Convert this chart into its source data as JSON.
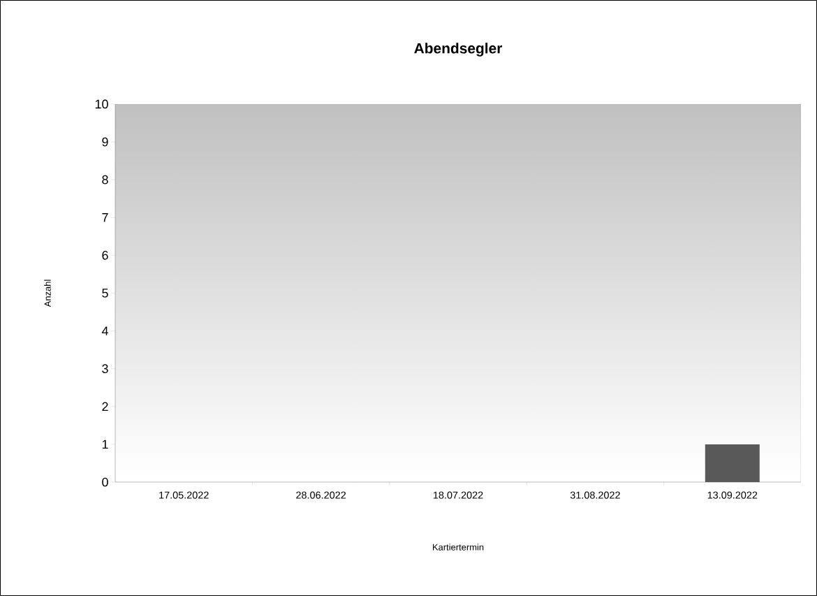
{
  "chart_data": {
    "type": "bar",
    "title": "Abendsegler",
    "xlabel": "Kartiertermin",
    "ylabel": "Anzahl",
    "categories": [
      "17.05.2022",
      "28.06.2022",
      "18.07.2022",
      "31.08.2022",
      "13.09.2022"
    ],
    "values": [
      0,
      0,
      0,
      0,
      1
    ],
    "color": "#595959",
    "ylim": [
      0,
      10
    ],
    "yticks": [
      0,
      1,
      2,
      3,
      4,
      5,
      6,
      7,
      8,
      9,
      10
    ],
    "grid": false
  }
}
